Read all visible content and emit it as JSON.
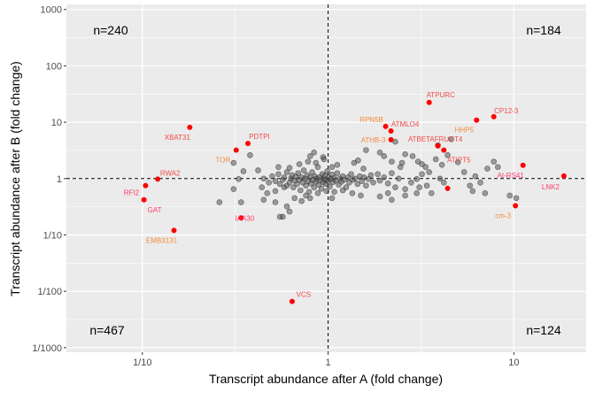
{
  "chart_data": {
    "type": "scatter",
    "xlabel": "Transcript abundance after A (fold change)",
    "ylabel": "Transcript abundance after B (fold change)",
    "x_scale": "log10",
    "y_scale": "log10",
    "xlim": [
      0.039,
      24.5
    ],
    "ylim": [
      0.00083,
      1230
    ],
    "x_ticks": [
      {
        "value": 0.1,
        "label": "1/10"
      },
      {
        "value": 1,
        "label": "1"
      },
      {
        "value": 10,
        "label": "10"
      }
    ],
    "y_ticks": [
      {
        "value": 1000,
        "label": "1000"
      },
      {
        "value": 100,
        "label": "100"
      },
      {
        "value": 10,
        "label": "10"
      },
      {
        "value": 1,
        "label": "1"
      },
      {
        "value": 0.1,
        "label": "1/10"
      },
      {
        "value": 0.01,
        "label": "1/100"
      },
      {
        "value": 0.001,
        "label": "1/1000"
      }
    ],
    "grid": true,
    "reference_lines": {
      "x": 1,
      "y": 1,
      "style": "dashed"
    },
    "quadrant_counts": {
      "top_left": "n=240",
      "top_right": "n=184",
      "bottom_left": "n=467",
      "bottom_right": "n=124"
    },
    "colors": {
      "background_points": "#555555",
      "highlight_points": "#ff0000",
      "panel": "#ebebeb",
      "label_red": "#f24a4a",
      "label_orange": "#f58a3a",
      "label_pink": "#ff3d6e"
    },
    "highlighted": [
      {
        "label": "ATPURC",
        "x": 3.5,
        "y": 22.4,
        "label_color": "label_red"
      },
      {
        "label": "CP12-3",
        "x": 7.8,
        "y": 12.5,
        "label_color": "label_red"
      },
      {
        "label": "HHP5",
        "x": 6.3,
        "y": 10.9,
        "label_color": "label_orange"
      },
      {
        "label": "RPN5B",
        "x": 2.04,
        "y": 8.4,
        "label_color": "label_orange"
      },
      {
        "label": "ATMLO4",
        "x": 2.18,
        "y": 7.0,
        "label_color": "label_red"
      },
      {
        "label": "ATHB-3",
        "x": 2.18,
        "y": 4.9,
        "label_color": "label_orange"
      },
      {
        "label": "ATBETAFRUCT4",
        "x": 3.9,
        "y": 3.8,
        "label_color": "label_red"
      },
      {
        "label": "ATIPT5",
        "x": 4.2,
        "y": 3.2,
        "label_color": "label_red"
      },
      {
        "label": "At-RS41",
        "x": 11.2,
        "y": 1.72,
        "label_color": "label_pink"
      },
      {
        "label": "LNK2",
        "x": 18.6,
        "y": 1.11,
        "label_color": "label_pink"
      },
      {
        "label": "",
        "x": 4.4,
        "y": 0.67,
        "label_color": "label_red"
      },
      {
        "label": "cm-3",
        "x": 10.2,
        "y": 0.33,
        "label_color": "label_orange"
      },
      {
        "label": "XBAT31",
        "x": 0.18,
        "y": 8.1,
        "label_color": "label_red"
      },
      {
        "label": "PDTPI",
        "x": 0.37,
        "y": 4.2,
        "label_color": "label_red"
      },
      {
        "label": "TOR",
        "x": 0.32,
        "y": 3.2,
        "label_color": "label_orange"
      },
      {
        "label": "RWA2",
        "x": 0.121,
        "y": 0.98,
        "label_color": "label_red"
      },
      {
        "label": "RFI2",
        "x": 0.104,
        "y": 0.75,
        "label_color": "label_pink"
      },
      {
        "label": "GAT",
        "x": 0.102,
        "y": 0.42,
        "label_color": "label_pink"
      },
      {
        "label": "IAA30",
        "x": 0.34,
        "y": 0.2,
        "label_color": "label_pink"
      },
      {
        "label": "EMB3131",
        "x": 0.148,
        "y": 0.12,
        "label_color": "label_orange"
      },
      {
        "label": "VCS",
        "x": 0.64,
        "y": 0.0066,
        "label_color": "label_red"
      }
    ],
    "background": [
      [
        0.26,
        0.38
      ],
      [
        0.34,
        0.38
      ],
      [
        0.31,
        0.65
      ],
      [
        0.33,
        0.98
      ],
      [
        0.35,
        1.35
      ],
      [
        0.31,
        1.9
      ],
      [
        0.38,
        2.6
      ],
      [
        0.42,
        1.4
      ],
      [
        0.45,
        1.0
      ],
      [
        0.44,
        0.7
      ],
      [
        0.47,
        0.55
      ],
      [
        0.45,
        0.42
      ],
      [
        0.52,
        0.38
      ],
      [
        0.6,
        0.32
      ],
      [
        0.62,
        0.26
      ],
      [
        0.57,
        0.21
      ],
      [
        0.55,
        0.21
      ],
      [
        0.58,
        0.7
      ],
      [
        0.66,
        0.45
      ],
      [
        0.72,
        0.4
      ],
      [
        0.48,
        0.85
      ],
      [
        0.5,
        1.1
      ],
      [
        0.52,
        0.9
      ],
      [
        0.54,
        1.2
      ],
      [
        0.55,
        0.8
      ],
      [
        0.57,
        0.95
      ],
      [
        0.58,
        1.05
      ],
      [
        0.6,
        0.75
      ],
      [
        0.6,
        1.3
      ],
      [
        0.62,
        0.85
      ],
      [
        0.63,
        1.0
      ],
      [
        0.64,
        1.15
      ],
      [
        0.65,
        0.7
      ],
      [
        0.66,
        0.92
      ],
      [
        0.67,
        1.08
      ],
      [
        0.68,
        0.8
      ],
      [
        0.69,
        1.25
      ],
      [
        0.7,
        0.95
      ],
      [
        0.71,
        0.62
      ],
      [
        0.72,
        1.05
      ],
      [
        0.73,
        0.85
      ],
      [
        0.74,
        1.4
      ],
      [
        0.75,
        1.0
      ],
      [
        0.76,
        0.75
      ],
      [
        0.77,
        1.15
      ],
      [
        0.78,
        0.9
      ],
      [
        0.79,
        0.58
      ],
      [
        0.8,
        1.05
      ],
      [
        0.81,
        0.82
      ],
      [
        0.82,
        1.3
      ],
      [
        0.83,
        0.95
      ],
      [
        0.84,
        0.7
      ],
      [
        0.85,
        1.1
      ],
      [
        0.86,
        0.88
      ],
      [
        0.87,
        1.0
      ],
      [
        0.88,
        1.6
      ],
      [
        0.89,
        0.78
      ],
      [
        0.9,
        1.05
      ],
      [
        0.91,
        0.93
      ],
      [
        0.92,
        0.66
      ],
      [
        0.93,
        1.2
      ],
      [
        0.94,
        0.85
      ],
      [
        0.95,
        1.0
      ],
      [
        0.96,
        1.12
      ],
      [
        0.97,
        0.8
      ],
      [
        0.98,
        0.95
      ],
      [
        0.99,
        1.35
      ],
      [
        1.0,
        0.9
      ],
      [
        1.01,
        1.05
      ],
      [
        1.02,
        0.72
      ],
      [
        1.03,
        0.98
      ],
      [
        1.05,
        1.18
      ],
      [
        1.06,
        0.86
      ],
      [
        1.08,
        1.02
      ],
      [
        1.1,
        0.92
      ],
      [
        1.12,
        1.25
      ],
      [
        1.14,
        0.78
      ],
      [
        1.16,
        1.0
      ],
      [
        1.18,
        0.88
      ],
      [
        1.2,
        1.1
      ],
      [
        1.22,
        0.95
      ],
      [
        1.25,
        0.7
      ],
      [
        1.28,
        1.05
      ],
      [
        1.3,
        0.85
      ],
      [
        1.33,
        1.2
      ],
      [
        1.36,
        0.95
      ],
      [
        1.4,
        1.0
      ],
      [
        1.44,
        0.8
      ],
      [
        1.48,
        1.1
      ],
      [
        1.52,
        0.9
      ],
      [
        1.56,
        1.05
      ],
      [
        1.6,
        0.75
      ],
      [
        1.65,
        0.98
      ],
      [
        1.7,
        1.15
      ],
      [
        1.75,
        0.85
      ],
      [
        0.62,
        1.55
      ],
      [
        0.7,
        1.8
      ],
      [
        0.78,
        2.0
      ],
      [
        0.86,
        1.9
      ],
      [
        0.94,
        2.4
      ],
      [
        0.84,
        2.9
      ],
      [
        0.8,
        2.5
      ],
      [
        0.95,
        2.2
      ],
      [
        1.05,
        1.6
      ],
      [
        1.12,
        1.75
      ],
      [
        0.52,
        0.6
      ],
      [
        0.76,
        0.5
      ],
      [
        0.88,
        0.55
      ],
      [
        0.98,
        0.6
      ],
      [
        1.08,
        0.58
      ],
      [
        1.2,
        0.62
      ],
      [
        1.35,
        0.55
      ],
      [
        1.5,
        0.5
      ],
      [
        0.8,
        0.45
      ],
      [
        1.05,
        0.45
      ],
      [
        1.38,
        1.9
      ],
      [
        1.45,
        2.1
      ],
      [
        1.55,
        1.5
      ],
      [
        1.85,
        1.2
      ],
      [
        1.9,
        0.92
      ],
      [
        2.0,
        1.05
      ],
      [
        2.1,
        0.82
      ],
      [
        2.2,
        1.25
      ],
      [
        2.3,
        0.7
      ],
      [
        2.4,
        1.0
      ],
      [
        2.45,
        1.6
      ],
      [
        2.6,
        0.65
      ],
      [
        2.1,
        0.55
      ],
      [
        1.9,
        0.48
      ],
      [
        2.2,
        0.42
      ],
      [
        2.0,
        2.5
      ],
      [
        2.2,
        2.0
      ],
      [
        2.5,
        1.9
      ],
      [
        2.6,
        2.7
      ],
      [
        2.85,
        2.5
      ],
      [
        3.05,
        2.0
      ],
      [
        3.2,
        1.8
      ],
      [
        3.35,
        1.6
      ],
      [
        3.5,
        1.3
      ],
      [
        3.2,
        1.2
      ],
      [
        3.0,
        0.98
      ],
      [
        2.8,
        0.85
      ],
      [
        3.1,
        0.7
      ],
      [
        3.4,
        0.75
      ],
      [
        3.0,
        0.55
      ],
      [
        2.6,
        0.5
      ],
      [
        3.6,
        0.55
      ],
      [
        4.2,
        0.85
      ],
      [
        4.0,
        1.0
      ],
      [
        3.8,
        2.2
      ],
      [
        4.4,
        2.6
      ],
      [
        4.1,
        1.75
      ],
      [
        5.0,
        1.95
      ],
      [
        5.4,
        1.3
      ],
      [
        5.8,
        0.75
      ],
      [
        6.2,
        1.1
      ],
      [
        6.6,
        0.85
      ],
      [
        7.2,
        1.5
      ],
      [
        7.8,
        2.0
      ],
      [
        8.2,
        1.6
      ],
      [
        9.5,
        0.5
      ],
      [
        10.3,
        0.45
      ],
      [
        7.0,
        0.55
      ],
      [
        6.0,
        0.6
      ],
      [
        4.6,
        5.0
      ],
      [
        3.9,
        3.9
      ],
      [
        2.3,
        4.5
      ],
      [
        1.9,
        2.9
      ],
      [
        1.6,
        3.2
      ],
      [
        0.54,
        1.6
      ]
    ]
  }
}
